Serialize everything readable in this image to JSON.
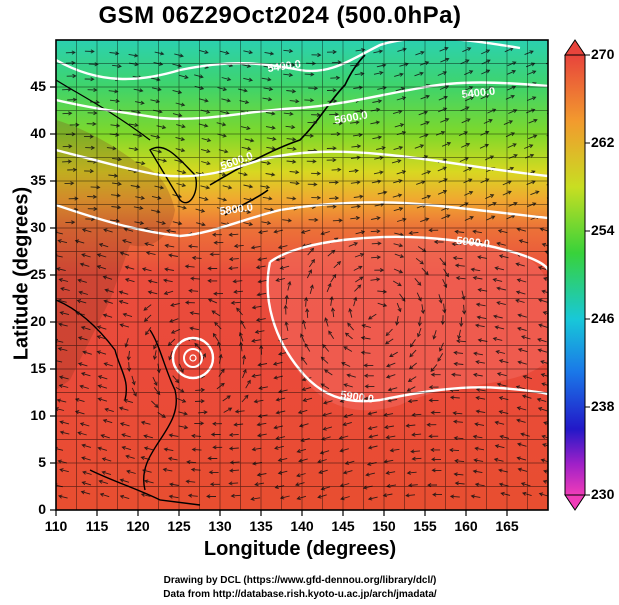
{
  "title": "GSM 06Z29Oct2024 (500.0hPa)",
  "axes": {
    "xlabel": "Longitude (degrees)",
    "ylabel": "Latitude  (degrees)",
    "xticks": [
      "110",
      "115",
      "120",
      "125",
      "130",
      "135",
      "140",
      "145",
      "150",
      "155",
      "160",
      "165"
    ],
    "yticks": [
      "0",
      "5",
      "10",
      "15",
      "20",
      "25",
      "30",
      "35",
      "40",
      "45"
    ],
    "xlim": [
      110,
      170
    ],
    "ylim": [
      0,
      50
    ]
  },
  "colorbar": {
    "min_label": "230",
    "max_label": "270",
    "tick_labels": [
      "270",
      "262",
      "254",
      "246",
      "238",
      "230"
    ]
  },
  "contour_labels": [
    "5400.0",
    "5400.0",
    "5600.0",
    "5600.0",
    "5800.0",
    "5800.0",
    "5900.0",
    "5900.0"
  ],
  "credits": {
    "line1": "Drawing by DCL (https://www.gfd-dennou.org/library/dcl/)",
    "line2": "Data from http://database.rish.kyoto-u.ac.jp/arch/jmadata/"
  },
  "chart_data": {
    "type": "heatmap",
    "title": "GSM 06Z29Oct2024 (500.0hPa)",
    "xlabel": "Longitude (degrees)",
    "ylabel": "Latitude  (degrees)",
    "xlim": [
      110,
      170
    ],
    "ylim": [
      0,
      50
    ],
    "color_range": [
      230,
      270
    ],
    "contour_levels": [
      5400,
      5600,
      5800,
      5900
    ],
    "grid": true,
    "legend": "right colorbar"
  }
}
